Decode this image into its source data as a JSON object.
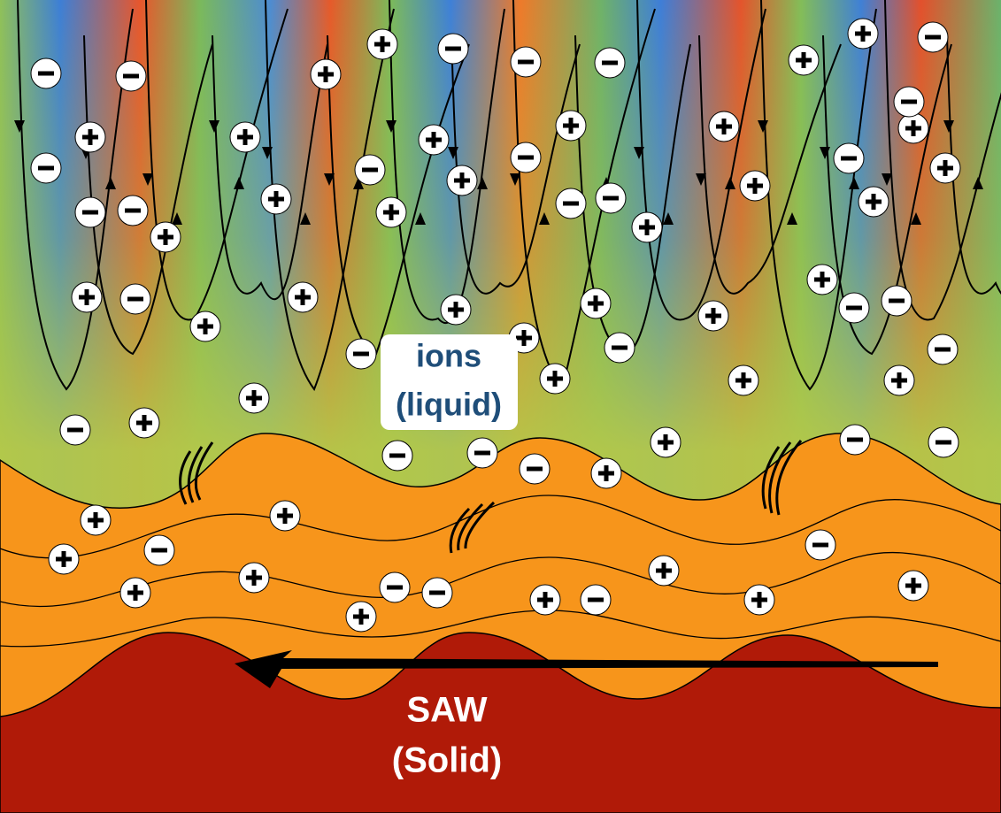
{
  "liquid_label": {
    "line1": "ions",
    "line2": "(liquid)"
  },
  "solid_label": {
    "line1": "SAW",
    "line2": "(Solid)"
  }
}
